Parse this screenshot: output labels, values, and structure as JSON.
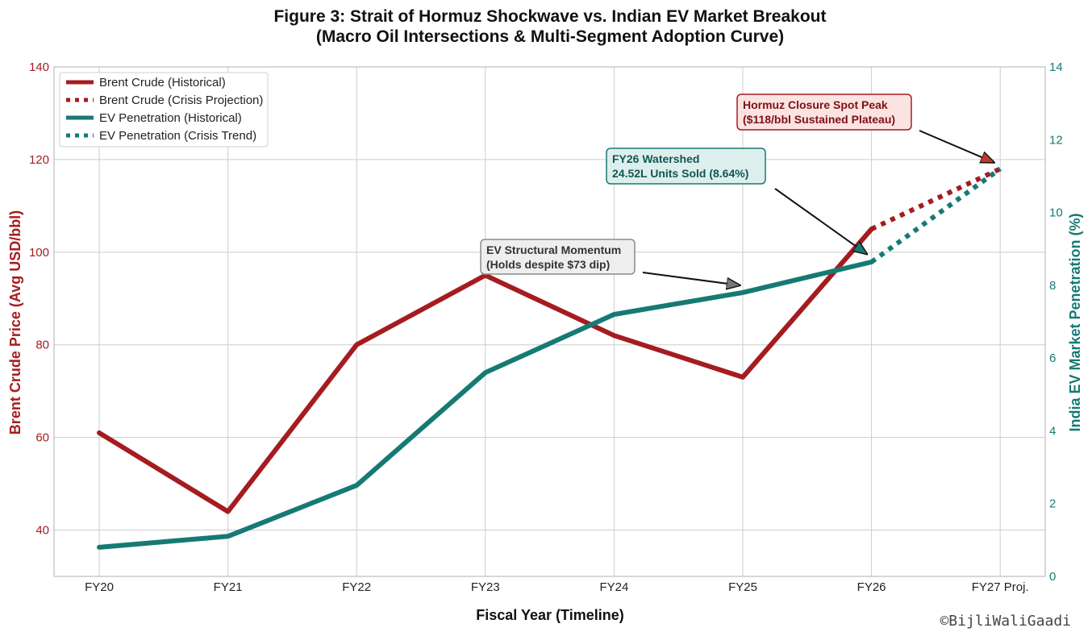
{
  "chart_data": {
    "type": "line",
    "title": "Figure 3: Strait of Hormuz Shockwave vs. Indian EV Market Breakout",
    "subtitle": "(Macro Oil Intersections & Multi-Segment Adoption Curve)",
    "xlabel": "Fiscal Year (Timeline)",
    "ylabel_left": "Brent Crude Price (Avg USD/bbl)",
    "ylabel_right": "India EV Market Penetration (%)",
    "categories": [
      "FY20",
      "FY21",
      "FY22",
      "FY23",
      "FY24",
      "FY25",
      "FY26",
      "FY27 Proj."
    ],
    "ylim_left": [
      30,
      140
    ],
    "yticks_left": [
      40,
      60,
      80,
      100,
      120,
      140
    ],
    "ylim_right": [
      0,
      14
    ],
    "yticks_right": [
      0,
      2,
      4,
      6,
      8,
      10,
      12,
      14
    ],
    "grid": true,
    "legend_position": "top-left",
    "series": [
      {
        "name": "Brent Crude (Historical)",
        "axis": "left",
        "style": "solid",
        "color": "#a51c20",
        "x": [
          "FY20",
          "FY21",
          "FY22",
          "FY23",
          "FY24",
          "FY25",
          "FY26"
        ],
        "values": [
          61,
          44,
          80,
          95,
          82,
          73,
          105
        ]
      },
      {
        "name": "Brent Crude (Crisis Projection)",
        "axis": "left",
        "style": "dotted",
        "color": "#a51c20",
        "x": [
          "FY26",
          "FY27 Proj."
        ],
        "values": [
          105,
          118
        ]
      },
      {
        "name": "EV Penetration (Historical)",
        "axis": "right",
        "style": "solid",
        "color": "#167a74",
        "x": [
          "FY20",
          "FY21",
          "FY22",
          "FY23",
          "FY24",
          "FY25",
          "FY26"
        ],
        "values": [
          0.8,
          1.1,
          2.5,
          5.6,
          7.2,
          7.8,
          8.64
        ]
      },
      {
        "name": "EV Penetration (Crisis Trend)",
        "axis": "right",
        "style": "dotted",
        "color": "#167a74",
        "x": [
          "FY26",
          "FY27 Proj."
        ],
        "values": [
          8.64,
          11.2
        ]
      }
    ],
    "annotations": [
      {
        "lines": [
          "Hormuz Closure Spot Peak",
          "($118/bbl Sustained Plateau)"
        ],
        "style": "red",
        "target_x": "FY27 Proj.",
        "target_axis": "left",
        "target_value": 118
      },
      {
        "lines": [
          "FY26 Watershed",
          "24.52L Units Sold (8.64%)"
        ],
        "style": "teal",
        "target_x": "FY26",
        "target_axis": "right",
        "target_value": 8.64
      },
      {
        "lines": [
          "EV Structural Momentum",
          "(Holds despite $73 dip)"
        ],
        "style": "gray",
        "target_x": "FY25",
        "target_axis": "right",
        "target_value": 7.8
      }
    ]
  },
  "watermark": "©BijliWaliGaadi",
  "colors": {
    "oil": "#a51c20",
    "ev": "#167a74",
    "grid": "#cccccc"
  }
}
